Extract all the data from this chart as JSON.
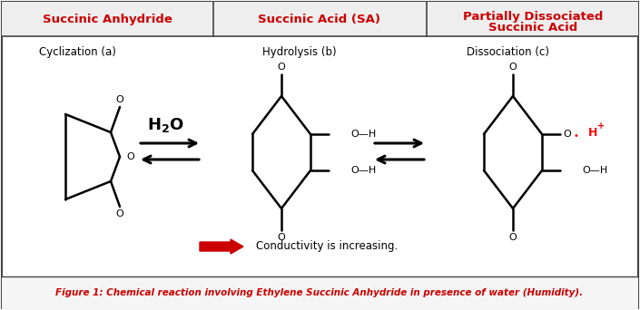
{
  "title_col1": "Succinic Anhydride",
  "title_col2": "Succinic Acid (SA)",
  "title_col3": "Partially Dissociated\nSuccinic Acid",
  "subtitle1": "Cyclization (a)",
  "subtitle2": "Hydrolysis (b)",
  "subtitle3": "Dissociation (c)",
  "conductivity_label": "Conductivity is increasing.",
  "figure_caption": "Figure 1: Chemical reaction involving Ethylene Succinic Anhydride in presence of water (Humidity).",
  "header_color": "#cc0000",
  "border_color": "#444444",
  "bg_color": "#ffffff",
  "lw": 1.8
}
